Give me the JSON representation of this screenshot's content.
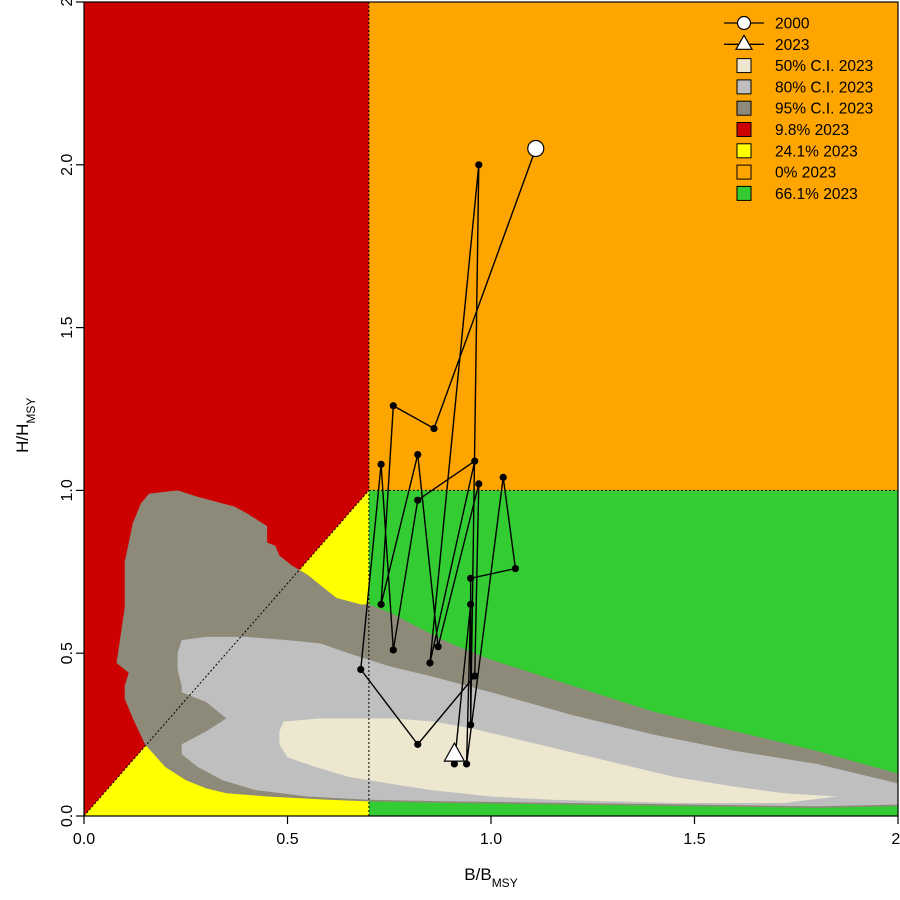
{
  "chart_data": {
    "type": "scatter",
    "subtype": "kobe-phase-plot",
    "xlim": [
      0,
      2
    ],
    "ylim": [
      0,
      2.5
    ],
    "x_ticks": [
      0.0,
      0.5,
      1.0,
      1.5,
      2.0
    ],
    "x_tick_labels": [
      "0.0",
      "0.5",
      "1.0",
      "1.5",
      "2."
    ],
    "y_ticks": [
      0.0,
      0.5,
      1.0,
      1.5,
      2.0,
      2.5
    ],
    "y_tick_labels": [
      "0.0",
      "0.5",
      "1.0",
      "1.5",
      "2.0",
      "2"
    ],
    "xlabel": {
      "main": "B/B",
      "sub": "MSY"
    },
    "ylabel": {
      "main": "H/H",
      "sub": "MSY"
    },
    "reference_lines": {
      "x_dotted": 0.7,
      "y_dotted": 1.0
    },
    "zones": [
      {
        "name": "red",
        "color": "#CC0000"
      },
      {
        "name": "yellow",
        "color": "#FFFF00"
      },
      {
        "name": "orange",
        "color": "#FFA500"
      },
      {
        "name": "green",
        "color": "#33CC33"
      }
    ],
    "confidence_regions": [
      {
        "level": "95%",
        "color": "#8E8A7A",
        "polygon": [
          [
            0.08,
            0.47
          ],
          [
            0.1,
            0.64
          ],
          [
            0.1,
            0.78
          ],
          [
            0.12,
            0.9
          ],
          [
            0.14,
            0.96
          ],
          [
            0.16,
            0.99
          ],
          [
            0.23,
            1.0
          ],
          [
            0.28,
            0.98
          ],
          [
            0.37,
            0.95
          ],
          [
            0.4,
            0.93
          ],
          [
            0.45,
            0.89
          ],
          [
            0.45,
            0.84
          ],
          [
            0.47,
            0.83
          ],
          [
            0.48,
            0.8
          ],
          [
            0.51,
            0.77
          ],
          [
            0.55,
            0.74
          ],
          [
            0.59,
            0.7
          ],
          [
            0.62,
            0.67
          ],
          [
            0.68,
            0.65
          ],
          [
            0.7,
            0.65
          ],
          [
            0.76,
            0.62
          ],
          [
            0.82,
            0.58
          ],
          [
            0.9,
            0.53
          ],
          [
            1.0,
            0.48
          ],
          [
            1.2,
            0.4
          ],
          [
            1.4,
            0.32
          ],
          [
            1.6,
            0.26
          ],
          [
            1.8,
            0.2
          ],
          [
            2.0,
            0.13
          ],
          [
            2.0,
            0.03
          ],
          [
            1.8,
            0.025
          ],
          [
            1.5,
            0.03
          ],
          [
            1.2,
            0.035
          ],
          [
            0.9,
            0.04
          ],
          [
            0.7,
            0.045
          ],
          [
            0.6,
            0.05
          ],
          [
            0.45,
            0.06
          ],
          [
            0.35,
            0.07
          ],
          [
            0.3,
            0.085
          ],
          [
            0.25,
            0.11
          ],
          [
            0.2,
            0.15
          ],
          [
            0.15,
            0.22
          ],
          [
            0.12,
            0.3
          ],
          [
            0.1,
            0.36
          ],
          [
            0.1,
            0.4
          ],
          [
            0.11,
            0.44
          ],
          [
            0.08,
            0.47
          ]
        ]
      },
      {
        "level": "80%",
        "color": "#BFBFBF",
        "polygon": [
          [
            0.24,
            0.54
          ],
          [
            0.3,
            0.55
          ],
          [
            0.4,
            0.55
          ],
          [
            0.5,
            0.54
          ],
          [
            0.58,
            0.53
          ],
          [
            0.65,
            0.5
          ],
          [
            0.75,
            0.46
          ],
          [
            0.85,
            0.43
          ],
          [
            1.0,
            0.38
          ],
          [
            1.2,
            0.31
          ],
          [
            1.4,
            0.25
          ],
          [
            1.6,
            0.2
          ],
          [
            1.8,
            0.16
          ],
          [
            2.0,
            0.1
          ],
          [
            2.0,
            0.035
          ],
          [
            1.8,
            0.03
          ],
          [
            1.5,
            0.035
          ],
          [
            1.2,
            0.04
          ],
          [
            0.9,
            0.045
          ],
          [
            0.7,
            0.05
          ],
          [
            0.55,
            0.06
          ],
          [
            0.42,
            0.08
          ],
          [
            0.34,
            0.11
          ],
          [
            0.28,
            0.15
          ],
          [
            0.24,
            0.19
          ],
          [
            0.24,
            0.22
          ],
          [
            0.3,
            0.26
          ],
          [
            0.35,
            0.3
          ],
          [
            0.3,
            0.35
          ],
          [
            0.24,
            0.38
          ],
          [
            0.24,
            0.4
          ],
          [
            0.23,
            0.45
          ],
          [
            0.23,
            0.5
          ],
          [
            0.24,
            0.54
          ]
        ]
      },
      {
        "level": "50%",
        "color": "#EDE7CF",
        "polygon": [
          [
            0.49,
            0.29
          ],
          [
            0.58,
            0.3
          ],
          [
            0.68,
            0.3
          ],
          [
            0.76,
            0.3
          ],
          [
            0.86,
            0.29
          ],
          [
            0.95,
            0.27
          ],
          [
            1.05,
            0.24
          ],
          [
            1.15,
            0.21
          ],
          [
            1.25,
            0.18
          ],
          [
            1.35,
            0.15
          ],
          [
            1.45,
            0.12
          ],
          [
            1.6,
            0.09
          ],
          [
            1.72,
            0.07
          ],
          [
            1.85,
            0.06
          ],
          [
            1.72,
            0.04
          ],
          [
            1.6,
            0.04
          ],
          [
            1.45,
            0.04
          ],
          [
            1.3,
            0.045
          ],
          [
            1.15,
            0.05
          ],
          [
            1.0,
            0.06
          ],
          [
            0.85,
            0.08
          ],
          [
            0.75,
            0.1
          ],
          [
            0.65,
            0.12
          ],
          [
            0.57,
            0.15
          ],
          [
            0.5,
            0.18
          ],
          [
            0.48,
            0.22
          ],
          [
            0.48,
            0.26
          ],
          [
            0.49,
            0.29
          ]
        ]
      }
    ],
    "trajectory": [
      [
        1.11,
        2.05
      ],
      [
        0.86,
        1.19
      ],
      [
        0.76,
        1.26
      ],
      [
        0.73,
        0.65
      ],
      [
        0.82,
        1.11
      ],
      [
        0.87,
        0.52
      ],
      [
        0.97,
        1.02
      ],
      [
        0.96,
        0.43
      ],
      [
        0.82,
        0.22
      ],
      [
        0.68,
        0.45
      ],
      [
        0.73,
        1.08
      ],
      [
        0.76,
        0.51
      ],
      [
        0.82,
        0.97
      ],
      [
        0.96,
        1.09
      ],
      [
        0.85,
        0.47
      ],
      [
        0.97,
        2.0
      ],
      [
        0.95,
        0.28
      ],
      [
        0.95,
        0.73
      ],
      [
        1.06,
        0.76
      ],
      [
        1.03,
        1.04
      ],
      [
        0.94,
        0.16
      ],
      [
        0.95,
        0.65
      ],
      [
        0.91,
        0.16
      ],
      [
        0.91,
        0.19
      ]
    ],
    "start_year": "2000",
    "end_year": "2023",
    "legend": [
      {
        "label": "2000",
        "symbol": "circle-line"
      },
      {
        "label": "2023",
        "symbol": "triangle-line"
      },
      {
        "label": "50% C.I. 2023",
        "symbol": "square",
        "color": "#EDE7CF"
      },
      {
        "label": "80% C.I. 2023",
        "symbol": "square",
        "color": "#BFBFBF"
      },
      {
        "label": "95% C.I. 2023",
        "symbol": "square",
        "color": "#8E8A7A"
      },
      {
        "label": "9.8% 2023",
        "symbol": "square",
        "color": "#CC0000"
      },
      {
        "label": "24.1% 2023",
        "symbol": "square",
        "color": "#FFFF00"
      },
      {
        "label": "0% 2023",
        "symbol": "square",
        "color": "#FFA500"
      },
      {
        "label": "66.1% 2023",
        "symbol": "square",
        "color": "#33CC33"
      }
    ],
    "legend_position": "top-right"
  }
}
